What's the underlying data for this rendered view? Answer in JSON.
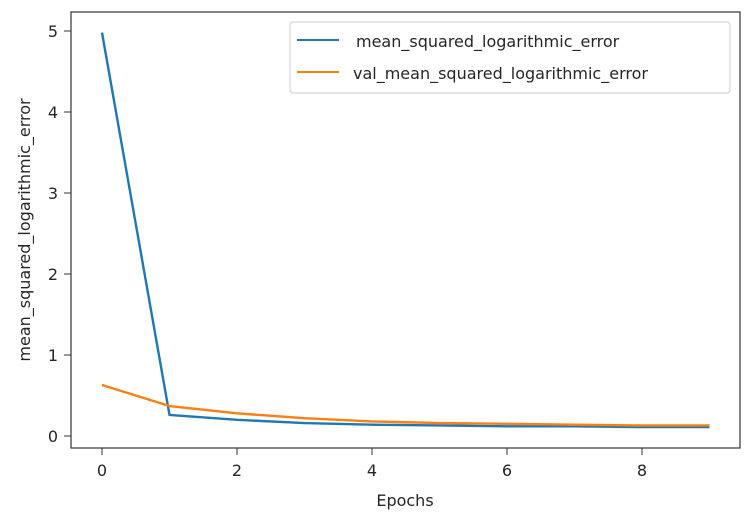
{
  "chart_data": {
    "type": "line",
    "title": "",
    "xlabel": "Epochs",
    "ylabel": "mean_squared_logarithmic_error",
    "x": [
      0,
      1,
      2,
      3,
      4,
      5,
      6,
      7,
      8,
      9
    ],
    "series": [
      {
        "name": "mean_squared_logarithmic_error",
        "color": "#1f77b4",
        "values": [
          4.98,
          0.26,
          0.2,
          0.16,
          0.14,
          0.13,
          0.12,
          0.12,
          0.11,
          0.11
        ]
      },
      {
        "name": "val_mean_squared_logarithmic_error",
        "color": "#ff7f0e",
        "values": [
          0.63,
          0.37,
          0.28,
          0.22,
          0.18,
          0.16,
          0.15,
          0.14,
          0.13,
          0.13
        ]
      }
    ],
    "xticks": [
      0,
      2,
      4,
      6,
      8
    ],
    "yticks": [
      0,
      1,
      2,
      3,
      4,
      5
    ],
    "xlim": [
      -0.45,
      9.45
    ],
    "ylim": [
      -0.15,
      5.23
    ],
    "grid": false,
    "legend_position": "upper right"
  }
}
